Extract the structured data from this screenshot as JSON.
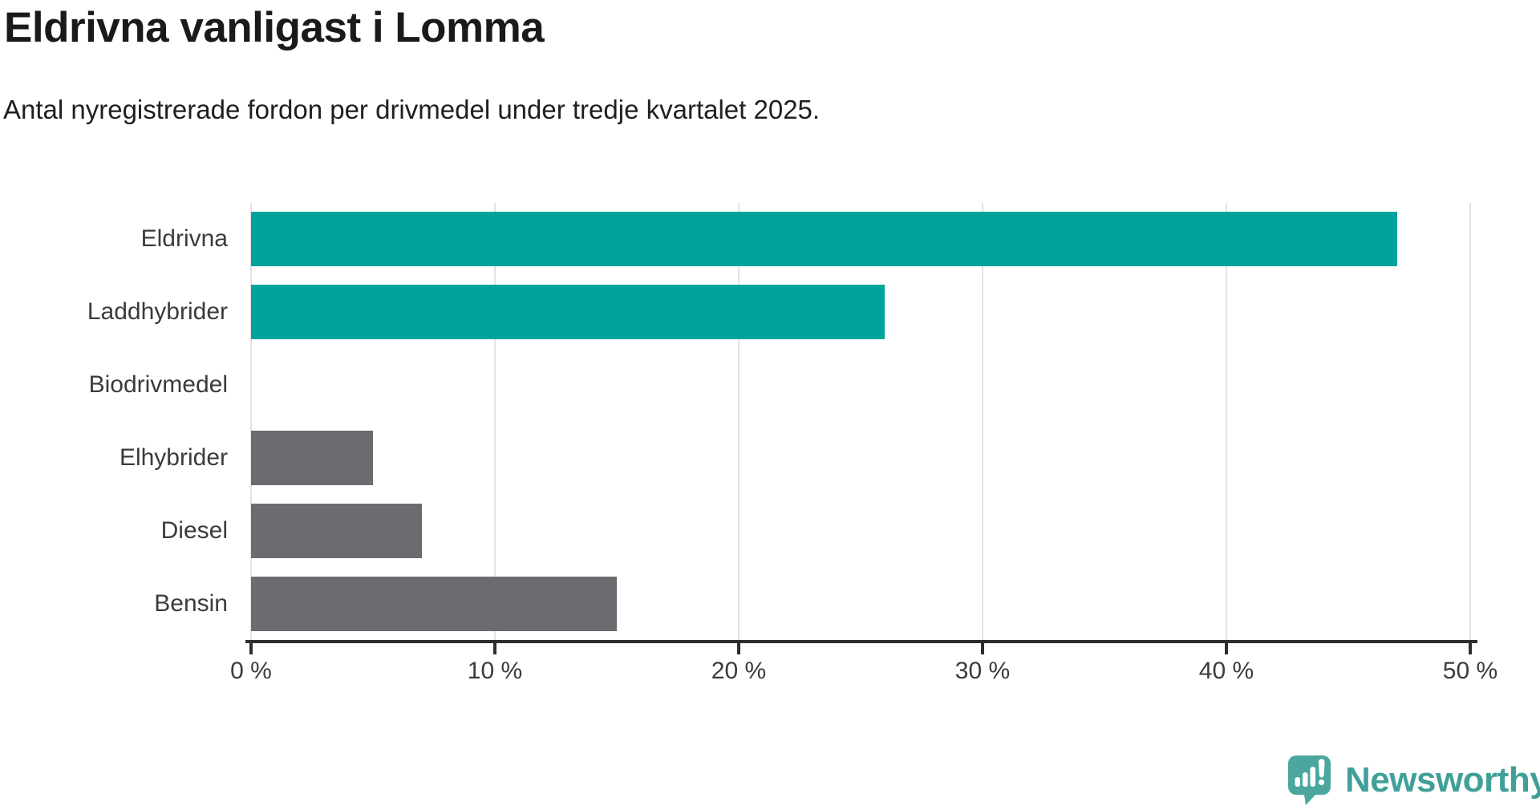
{
  "header": {
    "title": "Eldrivna vanligast i Lomma",
    "subtitle": "Antal nyregistrerade fordon per drivmedel under tredje kvartalet 2025."
  },
  "chart_data": {
    "type": "bar",
    "orientation": "horizontal",
    "title": "Eldrivna vanligast i Lomma",
    "subtitle": "Antal nyregistrerade fordon per drivmedel under tredje kvartalet 2025.",
    "categories": [
      "Eldrivna",
      "Laddhybrider",
      "Biodrivmedel",
      "Elhybrider",
      "Diesel",
      "Bensin"
    ],
    "values": [
      47,
      26,
      0,
      5,
      7,
      15
    ],
    "unit": "%",
    "xlim": [
      0,
      50
    ],
    "x_ticks": [
      0,
      10,
      20,
      30,
      40,
      50
    ],
    "x_tick_labels": [
      "0 %",
      "10 %",
      "20 %",
      "30 %",
      "40 %",
      "50 %"
    ],
    "bar_colors": [
      "#00a39b",
      "#00a39b",
      "#6b6b70",
      "#6b6b70",
      "#6b6b70",
      "#6b6b70"
    ],
    "grid": true,
    "legend": "none"
  },
  "colors": {
    "highlight_teal": "#00a39b",
    "neutral_gray": "#6b6b70",
    "gridline": "#e3e3e3",
    "axis": "#2e2e2e",
    "title_text": "#1a1a1a",
    "label_text": "#3b3b3b",
    "brand_teal": "#40a098",
    "logo_bubble_teal": "#4ba79e"
  },
  "branding": {
    "logo_label": "Newsworthy",
    "logo_icon": "newsworthy-speech-bubble-bar-chart-icon"
  }
}
